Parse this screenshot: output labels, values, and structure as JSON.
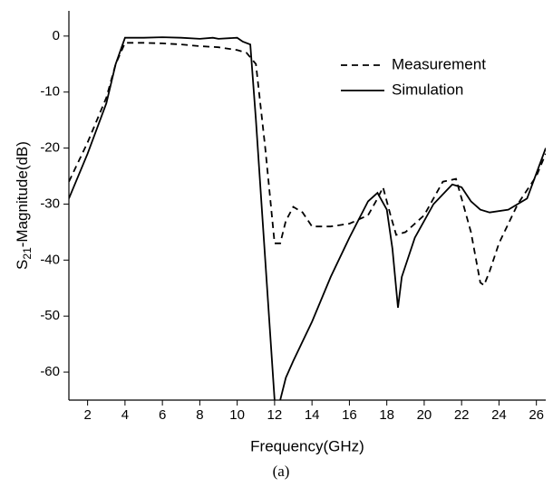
{
  "chart_data": {
    "type": "line",
    "xlabel": "Frequency(GHz)",
    "ylabel_parts": [
      "S",
      "21",
      "-Magnitude(dB)"
    ],
    "caption": "(a)",
    "xlim": [
      1,
      26.5
    ],
    "ylim": [
      -65,
      4.5
    ],
    "xticks": [
      2,
      4,
      6,
      8,
      10,
      12,
      14,
      16,
      18,
      20,
      22,
      24,
      26
    ],
    "yticks": [
      0,
      -10,
      -20,
      -30,
      -40,
      -50,
      -60
    ],
    "legend": "upper right",
    "series": [
      {
        "name": "Measurement",
        "color": "#000000",
        "dash": true,
        "x": [
          1,
          2,
          3,
          3.5,
          4,
          5,
          6,
          7,
          8,
          9,
          10,
          10.5,
          11,
          11.5,
          12,
          12.3,
          12.6,
          13,
          13.5,
          14,
          15,
          16,
          17,
          17.5,
          17.8,
          18.2,
          18.5,
          19,
          20,
          21,
          21.7,
          22,
          22.5,
          23,
          23.2,
          23.5,
          24,
          25,
          26,
          26.5
        ],
        "values": [
          -26,
          -19,
          -11,
          -5,
          -1.2,
          -1.2,
          -1.3,
          -1.5,
          -1.8,
          -2,
          -2.5,
          -3,
          -5,
          -20,
          -37,
          -37,
          -33,
          -30.5,
          -31.5,
          -34,
          -34,
          -33.5,
          -32,
          -29,
          -27,
          -32,
          -35.5,
          -35,
          -32,
          -26,
          -25.5,
          -29,
          -35,
          -44,
          -44.5,
          -42,
          -37,
          -30,
          -25,
          -21
        ]
      },
      {
        "name": "Simulation",
        "color": "#000000",
        "dash": false,
        "x": [
          1,
          2,
          3,
          3.5,
          4,
          5,
          6,
          7,
          8,
          8.7,
          9,
          10,
          10.3,
          10.7,
          11,
          11.5,
          12,
          12.15,
          12.3,
          12.6,
          13,
          14,
          15,
          16,
          17,
          17.5,
          18,
          18.3,
          18.6,
          18.8,
          19.5,
          20.5,
          21.5,
          22,
          22.5,
          23,
          23.5,
          24.5,
          25.5,
          26.5
        ],
        "values": [
          -29,
          -21,
          -12,
          -5,
          -0.3,
          -0.3,
          -0.2,
          -0.3,
          -0.5,
          -0.3,
          -0.5,
          -0.3,
          -1,
          -1.5,
          -15,
          -40,
          -65,
          null,
          -65,
          -61,
          -58,
          -51,
          -43,
          -36,
          -29.5,
          -28,
          -31,
          -38,
          -48.5,
          -43,
          -36,
          -30,
          -26.5,
          -27,
          -29.5,
          -31,
          -31.5,
          -31,
          -29,
          -20
        ]
      }
    ]
  }
}
